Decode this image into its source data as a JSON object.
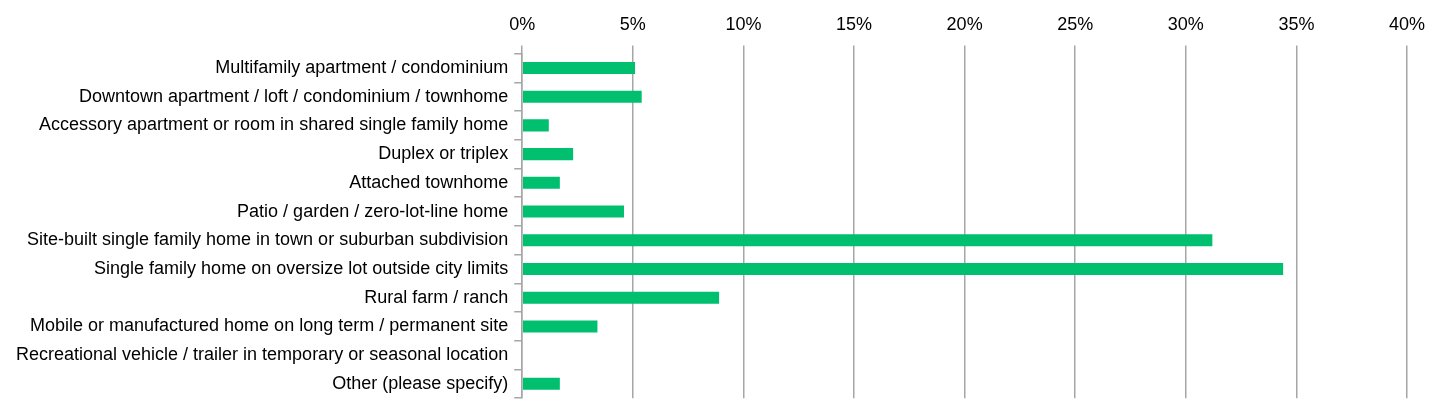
{
  "chart_data": {
    "type": "bar",
    "orientation": "horizontal",
    "categories": [
      "Multifamily apartment / condominium",
      "Downtown apartment / loft / condominium / townhome",
      "Accessory apartment or room in shared single family home",
      "Duplex or triplex",
      "Attached townhome",
      "Patio / garden / zero-lot-line home",
      "Site-built single family home in town or suburban subdivision",
      "Single family home on oversize lot outside city limits",
      "Rural farm / ranch",
      "Mobile or manufactured home on long term / permanent site",
      "Recreational vehicle / trailer in temporary or seasonal location",
      "Other (please specify)"
    ],
    "values": [
      5.1,
      5.4,
      1.2,
      2.3,
      1.7,
      4.6,
      31.2,
      34.4,
      8.9,
      3.4,
      0,
      1.7
    ],
    "color": "#00bf6f",
    "xlim": [
      0,
      40
    ],
    "xticks": [
      {
        "value": 0,
        "label": "0%"
      },
      {
        "value": 5,
        "label": "5%"
      },
      {
        "value": 10,
        "label": "10%"
      },
      {
        "value": 15,
        "label": "15%"
      },
      {
        "value": 20,
        "label": "20%"
      },
      {
        "value": 25,
        "label": "25%"
      },
      {
        "value": 30,
        "label": "30%"
      },
      {
        "value": 35,
        "label": "35%"
      },
      {
        "value": 40,
        "label": "40%"
      }
    ],
    "grid": "x",
    "legend": false
  }
}
